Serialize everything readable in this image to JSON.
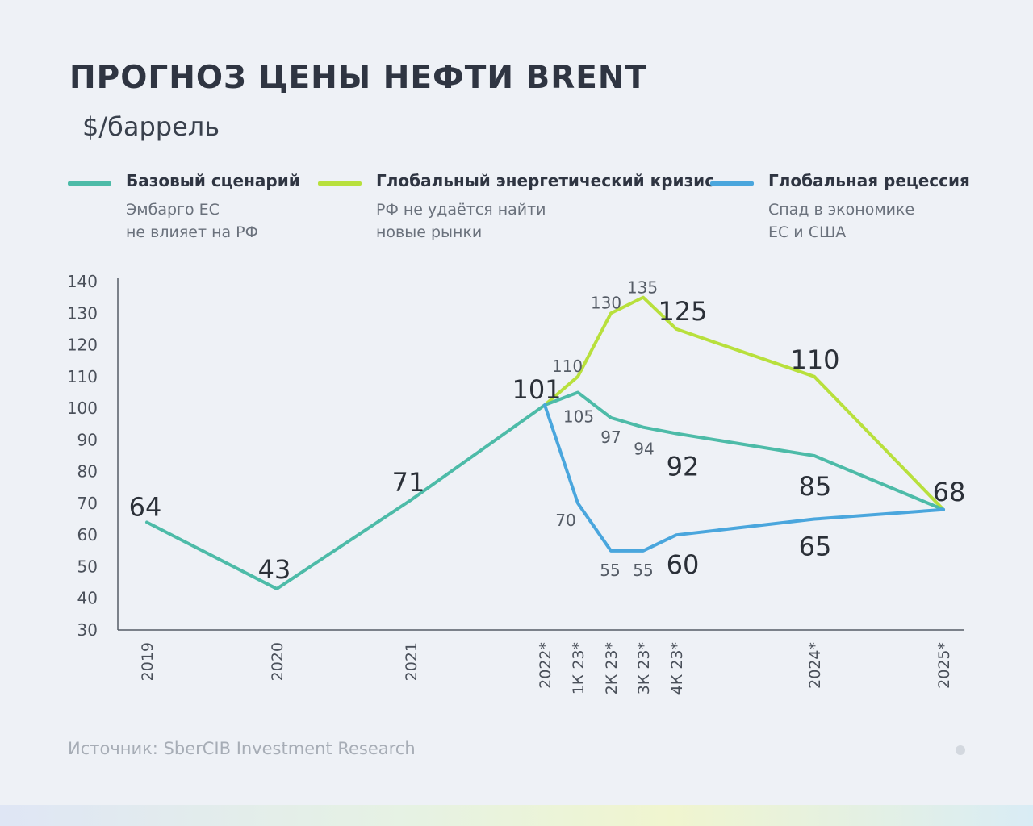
{
  "header": {
    "title": "ПРОГНОЗ ЦЕНЫ НЕФТИ BRENT",
    "subtitle": "$/баррель"
  },
  "legend": [
    {
      "name": "Базовый сценарий",
      "desc": [
        "Эмбарго ЕС",
        "не влияет на РФ"
      ],
      "color": "#4dbba8"
    },
    {
      "name": "Глобальный энергетический кризис",
      "desc": [
        "РФ не удаётся найти",
        "новые рынки"
      ],
      "color": "#b8e03c"
    },
    {
      "name": "Глобальная рецессия",
      "desc": [
        "Спад в экономике",
        "ЕС и США"
      ],
      "color": "#4aa6dd"
    }
  ],
  "source": "Источник: SberCIB Investment Research",
  "chart_data": {
    "type": "line",
    "ylim": [
      30,
      140
    ],
    "yticks": [
      140,
      130,
      120,
      110,
      100,
      90,
      80,
      70,
      60,
      50,
      40,
      30
    ],
    "categories": [
      "2019",
      "2020",
      "2021",
      "2022*",
      "1К 23*",
      "2К 23*",
      "3К 23*",
      "4К 23*",
      "2024*",
      "2025*"
    ],
    "series": [
      {
        "name": "Базовый сценарий",
        "color": "#4dbba8",
        "points": [
          {
            "c": 0,
            "v": 64,
            "label": "64",
            "big": true
          },
          {
            "c": 1,
            "v": 43,
            "label": "43",
            "big": true
          },
          {
            "c": 2,
            "v": 71,
            "label": "71",
            "big": true
          },
          {
            "c": 3,
            "v": 101,
            "label": "101",
            "big": true
          },
          {
            "c": 4,
            "v": 105,
            "label": "105",
            "big": false
          },
          {
            "c": 5,
            "v": 97,
            "label": "97",
            "big": false
          },
          {
            "c": 6,
            "v": 94,
            "label": "94",
            "big": false
          },
          {
            "c": 7,
            "v": 92,
            "label": "92",
            "big": true
          },
          {
            "c": 8,
            "v": 85,
            "label": "85",
            "big": true
          },
          {
            "c": 9,
            "v": 68,
            "label": "68",
            "big": true
          }
        ]
      },
      {
        "name": "Глобальный энергетический кризис",
        "color": "#b8e03c",
        "points": [
          {
            "c": 3,
            "v": 101,
            "label": "",
            "big": false
          },
          {
            "c": 4,
            "v": 110,
            "label": "110",
            "big": false
          },
          {
            "c": 5,
            "v": 130,
            "label": "130",
            "big": false
          },
          {
            "c": 6,
            "v": 135,
            "label": "135",
            "big": false
          },
          {
            "c": 7,
            "v": 125,
            "label": "125",
            "big": true
          },
          {
            "c": 8,
            "v": 110,
            "label": "110",
            "big": true
          },
          {
            "c": 9,
            "v": 68,
            "label": "",
            "big": false
          }
        ]
      },
      {
        "name": "Глобальная рецессия",
        "color": "#4aa6dd",
        "points": [
          {
            "c": 3,
            "v": 101,
            "label": "",
            "big": false
          },
          {
            "c": 4,
            "v": 70,
            "label": "70",
            "big": false
          },
          {
            "c": 5,
            "v": 55,
            "label": "55",
            "big": false
          },
          {
            "c": 6,
            "v": 55,
            "label": "55",
            "big": false
          },
          {
            "c": 7,
            "v": 60,
            "label": "60",
            "big": true
          },
          {
            "c": 8,
            "v": 65,
            "label": "65",
            "big": true
          },
          {
            "c": 9,
            "v": 68,
            "label": "",
            "big": false
          }
        ]
      }
    ]
  }
}
